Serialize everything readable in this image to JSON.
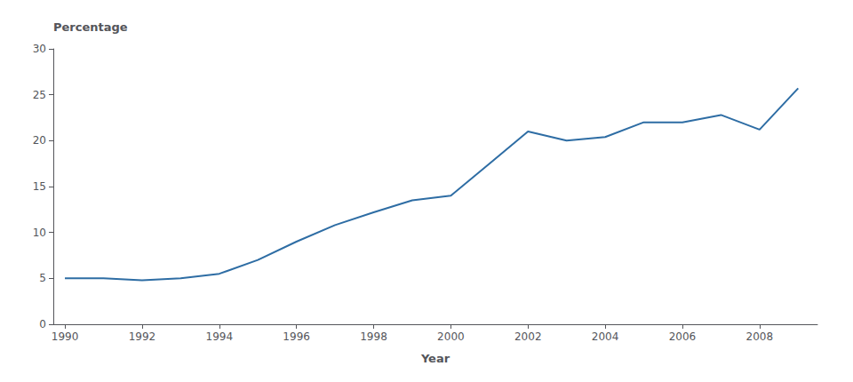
{
  "chart_data": {
    "type": "line",
    "x": [
      1990,
      1991,
      1992,
      1993,
      1994,
      1995,
      1996,
      1997,
      1998,
      1999,
      2000,
      2001,
      2002,
      2003,
      2004,
      2005,
      2006,
      2007,
      2008,
      2009
    ],
    "values": [
      5.0,
      5.0,
      4.8,
      5.0,
      5.5,
      7.0,
      9.0,
      10.8,
      12.2,
      13.5,
      14.0,
      17.5,
      21.0,
      20.0,
      20.4,
      22.0,
      22.0,
      22.8,
      21.2,
      25.7
    ],
    "color": "#2e6da4",
    "xlabel": "Year",
    "ylabel": "Percentage",
    "xlim": [
      1989.7,
      2009.5
    ],
    "ylim": [
      0,
      30
    ],
    "xticks": [
      1990,
      1992,
      1994,
      1996,
      1998,
      2000,
      2002,
      2004,
      2006,
      2008
    ],
    "yticks": [
      0,
      5,
      10,
      15,
      20,
      25,
      30
    ],
    "grid": false
  }
}
